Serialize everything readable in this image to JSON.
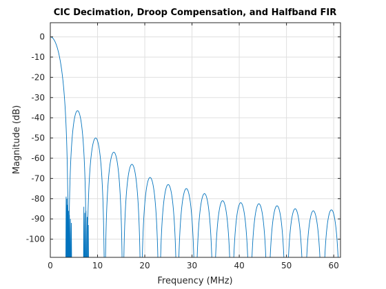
{
  "chart_data": {
    "type": "line",
    "title": "CIC Decimation, Droop Compensation, and Halfband FIR",
    "xlabel": "Frequency (MHz)",
    "ylabel": "Magnitude (dB)",
    "xlim": [
      0,
      61.44
    ],
    "ylim": [
      -109,
      7
    ],
    "xticks": [
      0,
      10,
      20,
      30,
      40,
      50,
      60
    ],
    "yticks": [
      0,
      -10,
      -20,
      -30,
      -40,
      -50,
      -60,
      -70,
      -80,
      -90,
      -100
    ],
    "grid": true,
    "line_color": "#0072bd",
    "series": [
      {
        "lobe_width_mhz": 3.84,
        "main_lobe": {
          "x0": 0,
          "x1": 3.84,
          "peak_db": 0
        },
        "side_lobes": [
          {
            "x0": 3.84,
            "x1": 7.68,
            "peak_db": -36.5
          },
          {
            "x0": 7.68,
            "x1": 11.52,
            "peak_db": -50
          },
          {
            "x0": 11.52,
            "x1": 15.36,
            "peak_db": -57
          },
          {
            "x0": 15.36,
            "x1": 19.2,
            "peak_db": -63
          },
          {
            "x0": 19.2,
            "x1": 23.04,
            "peak_db": -69.5
          },
          {
            "x0": 23.04,
            "x1": 26.88,
            "peak_db": -73
          },
          {
            "x0": 26.88,
            "x1": 30.72,
            "peak_db": -75
          },
          {
            "x0": 30.72,
            "x1": 34.56,
            "peak_db": -77.5
          },
          {
            "x0": 34.56,
            "x1": 38.4,
            "peak_db": -81
          },
          {
            "x0": 38.4,
            "x1": 42.24,
            "peak_db": -82
          },
          {
            "x0": 42.24,
            "x1": 46.08,
            "peak_db": -82.5
          },
          {
            "x0": 46.08,
            "x1": 49.92,
            "peak_db": -83.5
          },
          {
            "x0": 49.92,
            "x1": 53.76,
            "peak_db": -85
          },
          {
            "x0": 53.76,
            "x1": 57.6,
            "peak_db": -86
          },
          {
            "x0": 57.6,
            "x1": 61.44,
            "peak_db": -85.5
          }
        ],
        "fine_ripple": [
          {
            "x": 3.35,
            "db": -79
          },
          {
            "x": 3.5,
            "db": -80
          },
          {
            "x": 3.65,
            "db": -83
          },
          {
            "x": 3.85,
            "db": -86
          },
          {
            "x": 4.05,
            "db": -88
          },
          {
            "x": 4.25,
            "db": -90
          },
          {
            "x": 4.45,
            "db": -92
          },
          {
            "x": 7.1,
            "db": -84
          },
          {
            "x": 7.3,
            "db": -87
          },
          {
            "x": 7.55,
            "db": -86
          },
          {
            "x": 7.8,
            "db": -89
          },
          {
            "x": 8.05,
            "db": -93
          }
        ]
      }
    ]
  }
}
